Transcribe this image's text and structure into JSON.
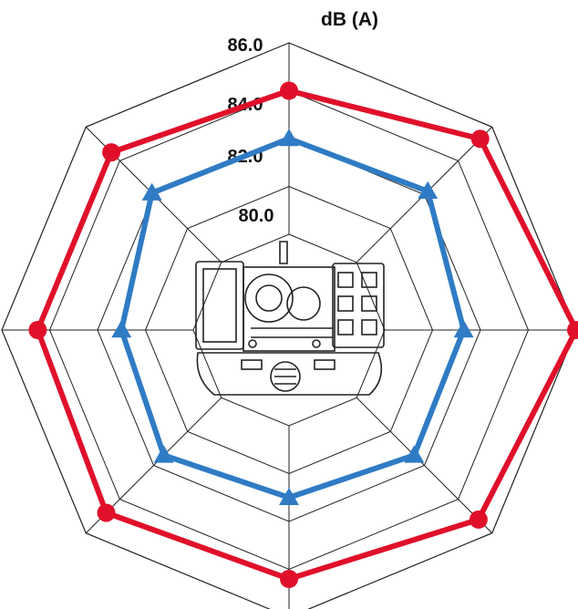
{
  "chart_data": {
    "type": "radar",
    "unit_label": "dB (A)",
    "tick_labels": [
      "80.0",
      "82.0",
      "84.0",
      "86.0"
    ],
    "rlim": [
      78.0,
      86.0
    ],
    "directions": 8,
    "grid": true,
    "legend": "none",
    "series": [
      {
        "color": "#e0102a",
        "marker": "circle",
        "values": [
          84.0,
          85.3,
          86.0,
          85.2,
          84.4,
          84.8,
          84.5,
          84.5
        ]
      },
      {
        "color": "#2f7bc4",
        "marker": "triangle",
        "values": [
          82.0,
          82.2,
          81.3,
          81.4,
          81.0,
          81.4,
          81.0,
          82.1
        ]
      }
    ],
    "center_image": "engine-generator-top-view"
  }
}
